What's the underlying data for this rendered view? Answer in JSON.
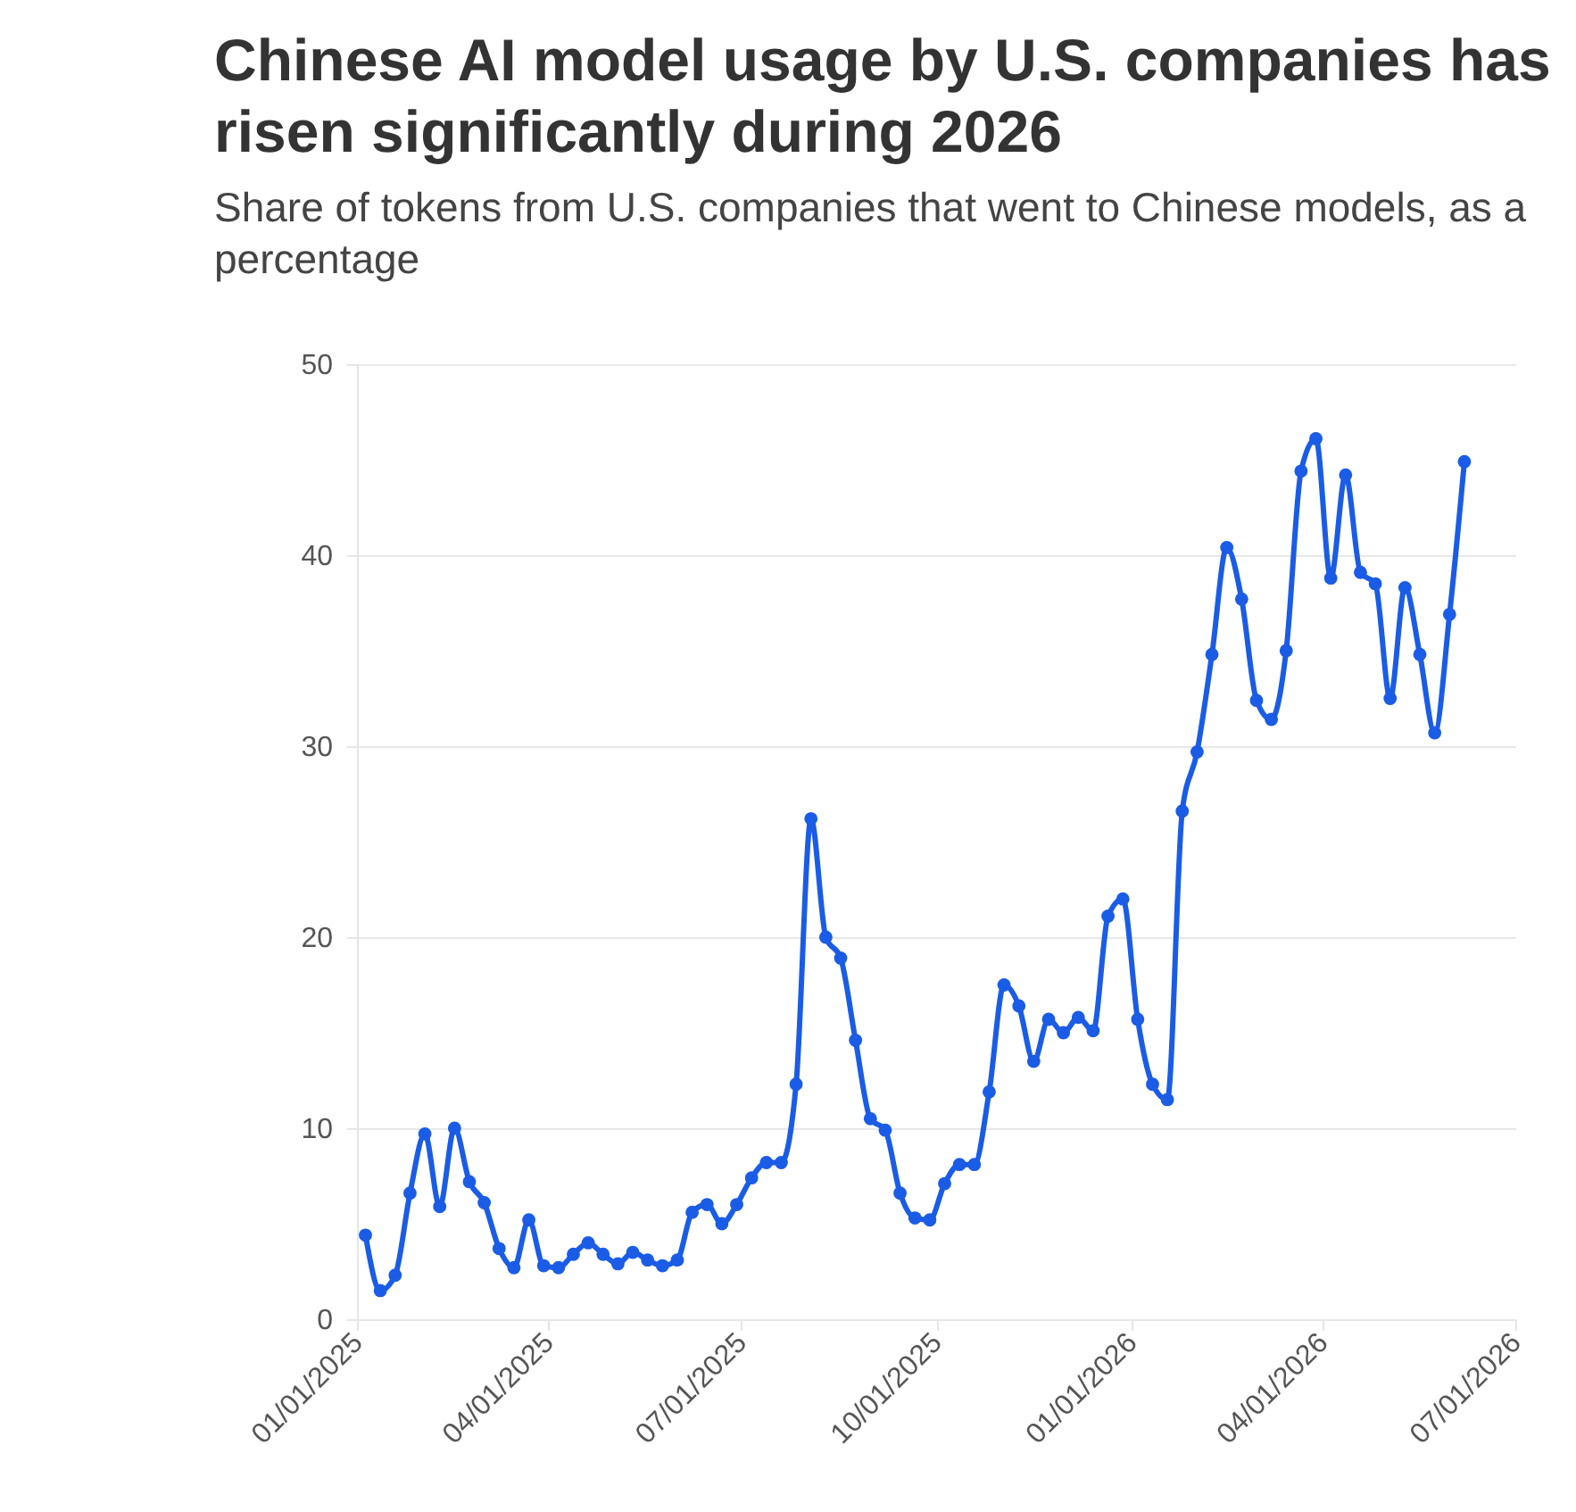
{
  "chart_data": {
    "type": "line",
    "title": "Chinese AI model usage by U.S. companies has risen significantly during 2026",
    "subtitle": "Share of tokens from U.S. companies that went to Chinese models, as a percentage",
    "x": [
      "2025-01-05",
      "2025-01-12",
      "2025-01-19",
      "2025-01-26",
      "2025-02-02",
      "2025-02-09",
      "2025-02-16",
      "2025-02-23",
      "2025-03-02",
      "2025-03-09",
      "2025-03-16",
      "2025-03-23",
      "2025-03-30",
      "2025-04-06",
      "2025-04-13",
      "2025-04-20",
      "2025-04-27",
      "2025-05-04",
      "2025-05-11",
      "2025-05-18",
      "2025-05-25",
      "2025-06-01",
      "2025-06-08",
      "2025-06-15",
      "2025-06-22",
      "2025-06-29",
      "2025-07-06",
      "2025-07-13",
      "2025-07-20",
      "2025-07-27",
      "2025-08-03",
      "2025-08-10",
      "2025-08-17",
      "2025-08-24",
      "2025-08-31",
      "2025-09-07",
      "2025-09-14",
      "2025-09-21",
      "2025-09-28",
      "2025-10-05",
      "2025-10-12",
      "2025-10-19",
      "2025-10-26",
      "2025-11-02",
      "2025-11-09",
      "2025-11-16",
      "2025-11-23",
      "2025-11-30",
      "2025-12-07",
      "2025-12-14",
      "2025-12-21",
      "2025-12-28",
      "2026-01-04",
      "2026-01-11",
      "2026-01-18",
      "2026-01-25",
      "2026-02-01",
      "2026-02-08",
      "2026-02-15",
      "2026-02-22",
      "2026-03-01",
      "2026-03-08",
      "2026-03-15",
      "2026-03-22",
      "2026-03-29",
      "2026-04-05",
      "2026-04-12",
      "2026-04-19",
      "2026-04-26",
      "2026-05-03",
      "2026-05-10",
      "2026-05-17",
      "2026-05-24",
      "2026-05-31",
      "2026-06-07"
    ],
    "series": [
      {
        "color": "#1a5ce6",
        "values": [
          4.4,
          1.5,
          2.3,
          6.6,
          9.7,
          5.9,
          10.0,
          7.2,
          6.1,
          3.7,
          2.7,
          5.2,
          2.8,
          2.7,
          3.4,
          4.0,
          3.4,
          2.9,
          3.5,
          3.1,
          2.8,
          3.1,
          5.6,
          6.0,
          5.0,
          6.0,
          7.4,
          8.2,
          8.2,
          12.3,
          26.2,
          20.0,
          18.9,
          14.6,
          10.5,
          9.9,
          6.6,
          5.3,
          5.2,
          7.1,
          8.1,
          8.1,
          11.9,
          17.5,
          16.4,
          13.5,
          15.7,
          15.0,
          15.8,
          15.1,
          21.1,
          22.0,
          15.7,
          12.3,
          11.5,
          26.6,
          29.7,
          34.8,
          40.4,
          37.7,
          32.4,
          31.4,
          35.0,
          44.4,
          46.1,
          38.8,
          44.2,
          39.1,
          38.5,
          32.5,
          38.3,
          34.8,
          30.7,
          36.9,
          44.9
        ]
      }
    ],
    "xlim": [
      "2025-01-01",
      "2026-07-01"
    ],
    "xticks": [
      {
        "value": "2025-01-01",
        "label": "01/01/2025"
      },
      {
        "value": "2025-04-01",
        "label": "04/01/2025"
      },
      {
        "value": "2025-07-01",
        "label": "07/01/2025"
      },
      {
        "value": "2025-10-01",
        "label": "10/01/2025"
      },
      {
        "value": "2026-01-01",
        "label": "01/01/2026"
      },
      {
        "value": "2026-04-01",
        "label": "04/01/2026"
      },
      {
        "value": "2026-07-01",
        "label": "07/01/2026"
      }
    ],
    "ylim": [
      0,
      50
    ],
    "yticks": [
      0,
      10,
      20,
      30,
      40,
      50
    ],
    "grid": "y",
    "marker": "circle",
    "line_style": "solid"
  }
}
